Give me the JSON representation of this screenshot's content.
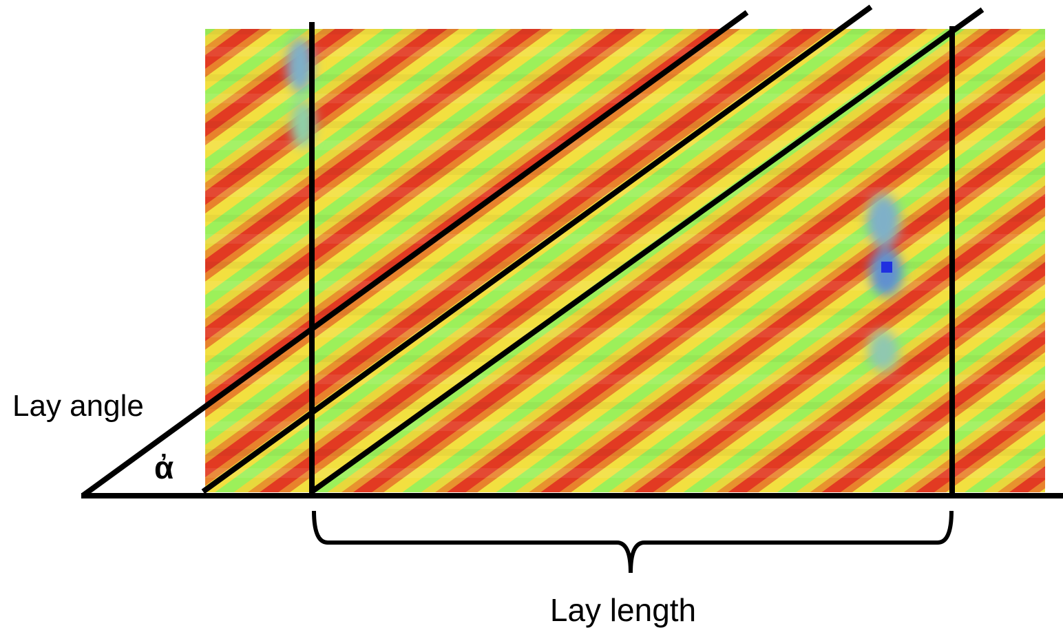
{
  "labels": {
    "lay_angle": "Lay angle",
    "angle_symbol": "ἀ",
    "lay_length": "Lay length"
  }
}
